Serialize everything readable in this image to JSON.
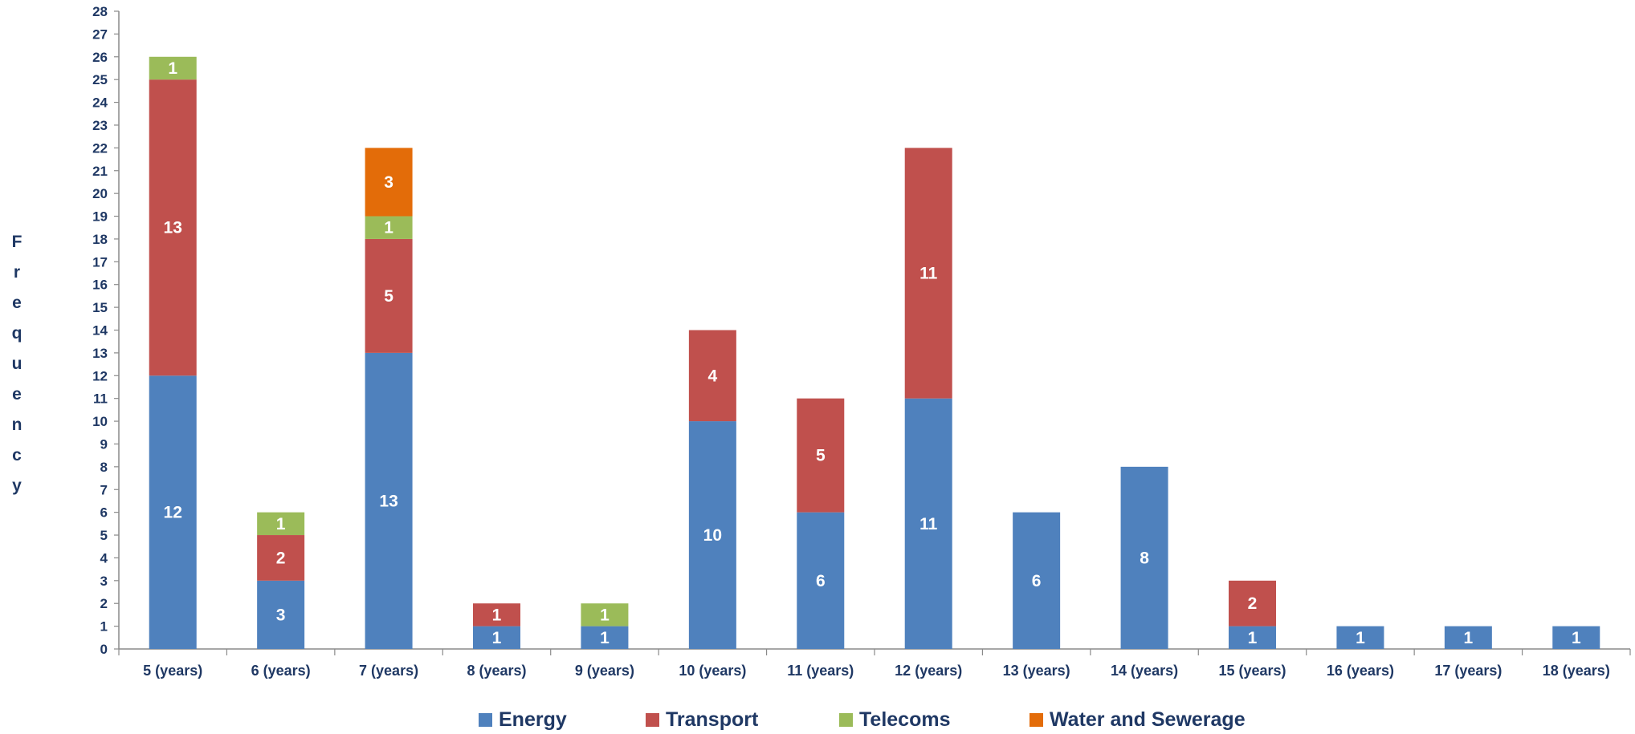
{
  "chart_data": {
    "type": "bar",
    "stacked": true,
    "title": "",
    "xlabel": "",
    "ylabel": "Frequency",
    "ylim": [
      0,
      28
    ],
    "yticks": [
      "0",
      "1",
      "2",
      "3",
      "4",
      "5",
      "6",
      "7",
      "8",
      "9",
      "10",
      "11",
      "12",
      "13",
      "14",
      "15",
      "16",
      "17",
      "18",
      "19",
      "20",
      "21",
      "22",
      "23",
      "24",
      "25",
      "26",
      "27",
      "28"
    ],
    "categories": [
      "5 (years)",
      "6 (years)",
      "7 (years)",
      "8 (years)",
      "9 (years)",
      "10 (years)",
      "11 (years)",
      "12 (years)",
      "13 (years)",
      "14 (years)",
      "15 (years)",
      "16 (years)",
      "17 (years)",
      "18 (years)"
    ],
    "series": [
      {
        "name": "Energy",
        "color": "#4f81bd",
        "values": [
          12,
          3,
          13,
          1,
          1,
          10,
          6,
          11,
          6,
          8,
          1,
          1,
          1,
          1
        ]
      },
      {
        "name": "Transport",
        "color": "#c0504d",
        "values": [
          13,
          2,
          5,
          1,
          0,
          4,
          5,
          11,
          0,
          0,
          2,
          0,
          0,
          0
        ]
      },
      {
        "name": "Telecoms",
        "color": "#9bbb59",
        "values": [
          1,
          1,
          1,
          0,
          1,
          0,
          0,
          0,
          0,
          0,
          0,
          0,
          0,
          0
        ]
      },
      {
        "name": "Water and Sewerage",
        "color": "#e36c09",
        "values": [
          0,
          0,
          3,
          0,
          0,
          0,
          0,
          0,
          0,
          0,
          0,
          0,
          0,
          0
        ]
      }
    ],
    "grid": false,
    "legend_position": "bottom"
  }
}
